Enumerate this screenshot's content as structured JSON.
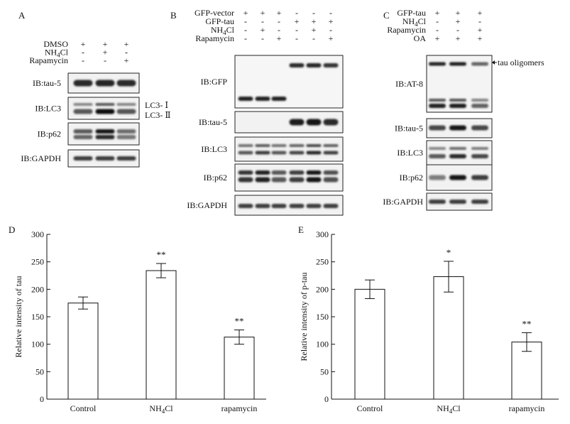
{
  "panel_a": {
    "letter": "A",
    "conditions": [
      {
        "label": "DMSO",
        "signs": [
          "+",
          "+",
          "+"
        ]
      },
      {
        "label": "NH4Cl",
        "signs": [
          "-",
          "+",
          "-"
        ]
      },
      {
        "label": "Rapamycin",
        "signs": [
          "-",
          "-",
          "+"
        ]
      }
    ],
    "blots": [
      {
        "label": "IB:tau-5",
        "lanes": [
          0.85,
          0.88,
          0.86
        ]
      },
      {
        "label": "IB:LC3",
        "lanes": [
          0.6,
          1.0,
          0.62
        ]
      },
      {
        "label": "IB:p62",
        "lanes": [
          0.6,
          0.95,
          0.5
        ]
      },
      {
        "label": "IB:GAPDH",
        "lanes": [
          0.75,
          0.75,
          0.75
        ]
      }
    ],
    "lc3_labels": [
      "LC3- Ⅰ",
      "LC3- Ⅱ"
    ]
  },
  "panel_b": {
    "letter": "B",
    "conditions": [
      {
        "label": "GFP-vector",
        "signs": [
          "+",
          "+",
          "+",
          "-",
          "-",
          "-"
        ]
      },
      {
        "label": "GFP-tau",
        "signs": [
          "-",
          "-",
          "-",
          "+",
          "+",
          "+"
        ]
      },
      {
        "label": "NH4Cl",
        "signs": [
          "-",
          "+",
          "-",
          "-",
          "+",
          "-"
        ]
      },
      {
        "label": "Rapamycin",
        "signs": [
          "-",
          "-",
          "+",
          "-",
          "-",
          "+"
        ]
      }
    ],
    "blots": [
      {
        "label": "IB:GFP",
        "lanes": [
          0.9,
          0.9,
          0.9,
          0.85,
          0.88,
          0.8
        ]
      },
      {
        "label": "IB:tau-5",
        "lanes": [
          0,
          0,
          0,
          0.92,
          0.95,
          0.85
        ]
      },
      {
        "label": "IB:LC3",
        "lanes": [
          0.6,
          0.75,
          0.6,
          0.7,
          0.85,
          0.72
        ]
      },
      {
        "label": "IB:p62",
        "lanes": [
          0.8,
          0.9,
          0.6,
          0.75,
          0.95,
          0.65
        ]
      },
      {
        "label": "IB:GAPDH",
        "lanes": [
          0.75,
          0.75,
          0.75,
          0.75,
          0.75,
          0.75
        ]
      }
    ]
  },
  "panel_c": {
    "letter": "C",
    "conditions": [
      {
        "label": "GFP-tau",
        "signs": [
          "+",
          "+",
          "+"
        ]
      },
      {
        "label": "NH4Cl",
        "signs": [
          "-",
          "+",
          "-"
        ]
      },
      {
        "label": "Rapamycin",
        "signs": [
          "-",
          "-",
          "+"
        ]
      },
      {
        "label": "OA",
        "signs": [
          "+",
          "+",
          "+"
        ]
      }
    ],
    "blots": [
      {
        "label": "IB:AT-8",
        "lanes": [
          0.9,
          0.92,
          0.55
        ]
      },
      {
        "label": "IB:tau-5",
        "lanes": [
          0.7,
          0.95,
          0.7
        ]
      },
      {
        "label": "IB:LC3",
        "lanes": [
          0.6,
          0.85,
          0.7
        ]
      },
      {
        "label": "IB:p62",
        "lanes": [
          0.4,
          0.95,
          0.75
        ]
      },
      {
        "label": "IB:GAPDH",
        "lanes": [
          0.75,
          0.75,
          0.75
        ]
      }
    ],
    "oligomer_label": "tau oligomers"
  },
  "chart_data": [
    {
      "letter": "D",
      "type": "bar",
      "categories": [
        "Control",
        "NH4Cl",
        "rapamycin"
      ],
      "values": [
        175,
        234,
        113
      ],
      "errors": [
        11,
        13,
        13
      ],
      "significance": [
        "",
        "**",
        "**"
      ],
      "ylabel": "Relative intensity of tau",
      "xlabel": "",
      "ylim": [
        0,
        300
      ],
      "yticks": [
        0,
        50,
        100,
        150,
        200,
        250,
        300
      ]
    },
    {
      "letter": "E",
      "type": "bar",
      "categories": [
        "Control",
        "NH4Cl",
        "rapamycin"
      ],
      "values": [
        200,
        223,
        104
      ],
      "errors": [
        17,
        28,
        17
      ],
      "significance": [
        "",
        "*",
        "**"
      ],
      "ylabel": "Relative intensity of p-tau",
      "xlabel": "",
      "ylim": [
        0,
        300
      ],
      "yticks": [
        0,
        50,
        100,
        150,
        200,
        250,
        300
      ]
    }
  ]
}
